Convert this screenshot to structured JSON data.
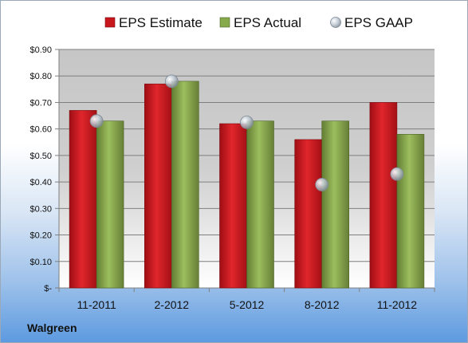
{
  "company": "Walgreen",
  "chart_data": {
    "type": "bar",
    "title": "",
    "xlabel": "",
    "ylabel": "",
    "categories": [
      "11-2011",
      "2-2012",
      "5-2012",
      "8-2012",
      "11-2012"
    ],
    "series": [
      {
        "name": "EPS Estimate",
        "type": "bar",
        "values": [
          0.67,
          0.77,
          0.62,
          0.56,
          0.7
        ],
        "color": "#c8161d"
      },
      {
        "name": "EPS Actual",
        "type": "bar",
        "values": [
          0.63,
          0.78,
          0.63,
          0.63,
          0.58
        ],
        "color": "#86a94b"
      },
      {
        "name": "EPS GAAP",
        "type": "scatter",
        "values": [
          0.63,
          0.78,
          0.625,
          0.39,
          0.43
        ],
        "color": "#b8c4d0"
      }
    ],
    "ylim": [
      0,
      0.9
    ],
    "yticks": [
      0,
      0.1,
      0.2,
      0.3,
      0.4,
      0.5,
      0.6,
      0.7,
      0.8,
      0.9
    ],
    "ytick_labels": [
      "$-",
      "$0.10",
      "$0.20",
      "$0.30",
      "$0.40",
      "$0.50",
      "$0.60",
      "$0.70",
      "$0.80",
      "$0.90"
    ],
    "grid": true,
    "legend": "top"
  }
}
